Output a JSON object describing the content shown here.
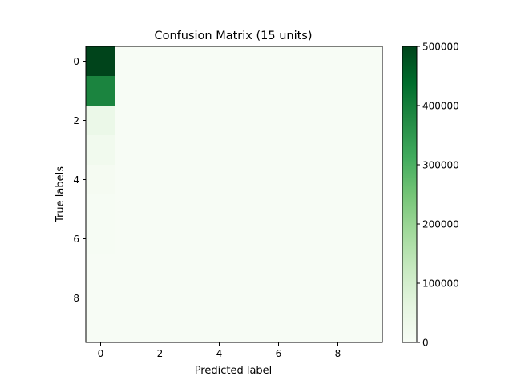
{
  "chart_data": {
    "type": "heatmap",
    "title": "Confusion Matrix (15 units)",
    "xlabel": "Predicted label",
    "ylabel": "True labels",
    "rows": [
      "0",
      "1",
      "2",
      "3",
      "4",
      "5",
      "6",
      "7",
      "8",
      "9"
    ],
    "cols": [
      "0",
      "1",
      "2",
      "3",
      "4",
      "5",
      "6",
      "7",
      "8",
      "9"
    ],
    "x_ticks": [
      "0",
      "2",
      "4",
      "6",
      "8"
    ],
    "y_ticks": [
      "0",
      "2",
      "4",
      "6",
      "8"
    ],
    "colormap": "Greens",
    "color_low": "#f7fcf5",
    "color_high": "#00441b",
    "vmin": 0,
    "vmax": 500000,
    "colorbar_ticks": [
      "0",
      "100000",
      "200000",
      "300000",
      "400000",
      "500000"
    ],
    "values": [
      [
        500000,
        0,
        0,
        0,
        0,
        0,
        0,
        0,
        0,
        0
      ],
      [
        390000,
        0,
        0,
        0,
        0,
        0,
        0,
        0,
        0,
        0
      ],
      [
        40000,
        0,
        0,
        0,
        0,
        0,
        0,
        0,
        0,
        0
      ],
      [
        20000,
        0,
        0,
        0,
        0,
        0,
        0,
        0,
        0,
        0
      ],
      [
        8000,
        0,
        0,
        0,
        0,
        0,
        0,
        0,
        0,
        0
      ],
      [
        4000,
        0,
        0,
        0,
        0,
        0,
        0,
        0,
        0,
        0
      ],
      [
        2000,
        0,
        0,
        0,
        0,
        0,
        0,
        0,
        0,
        0
      ],
      [
        1000,
        0,
        0,
        0,
        0,
        0,
        0,
        0,
        0,
        0
      ],
      [
        500,
        0,
        0,
        0,
        0,
        0,
        0,
        0,
        0,
        0
      ],
      [
        200,
        0,
        0,
        0,
        0,
        0,
        0,
        0,
        0,
        0
      ]
    ]
  }
}
